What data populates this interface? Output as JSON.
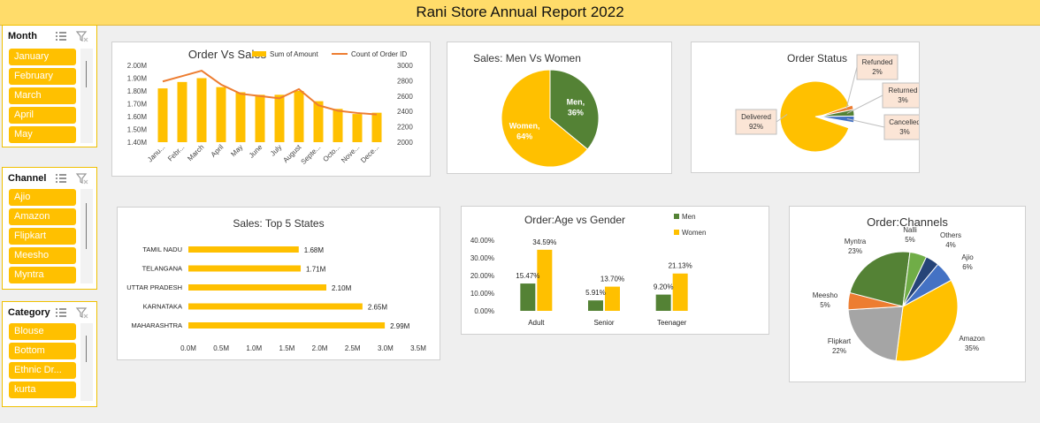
{
  "report": {
    "title": "Rani Store Annual Report 2022"
  },
  "slicers": {
    "month": {
      "header": "Month",
      "items": [
        "January",
        "February",
        "March",
        "April",
        "May"
      ]
    },
    "channel": {
      "header": "Channel",
      "items": [
        "Ajio",
        "Amazon",
        "Flipkart",
        "Meesho",
        "Myntra"
      ]
    },
    "category": {
      "header": "Category",
      "items": [
        "Blouse",
        "Bottom",
        "Ethnic Dr...",
        "kurta"
      ]
    }
  },
  "colors": {
    "yellow": "#ffc000",
    "green": "#548235",
    "orange": "#ed7d31",
    "blue": "#4472c4",
    "grey": "#a5a5a5",
    "navy": "#264478",
    "lightgreen": "#70ad47"
  },
  "chart_data": [
    {
      "id": "order_vs_sales",
      "type": "bar",
      "title": "Order Vs Sales",
      "categories": [
        "Janu...",
        "Febr...",
        "March",
        "April",
        "May",
        "June",
        "July",
        "August",
        "Septe...",
        "Octo...",
        "Nove...",
        "Dece..."
      ],
      "series": [
        {
          "name": "Sum of Amount",
          "kind": "bar",
          "axis": "left",
          "values": [
            1.82,
            1.87,
            1.9,
            1.83,
            1.79,
            1.77,
            1.77,
            1.8,
            1.72,
            1.66,
            1.62,
            1.63
          ]
        },
        {
          "name": "Count of Order ID",
          "kind": "line",
          "axis": "right",
          "values": [
            2790,
            2860,
            2930,
            2750,
            2630,
            2600,
            2570,
            2690,
            2480,
            2410,
            2380,
            2360
          ]
        }
      ],
      "yticks_left": [
        "2.00M",
        "1.90M",
        "1.80M",
        "1.70M",
        "1.60M",
        "1.50M",
        "1.40M"
      ],
      "yticks_right": [
        "3000",
        "2800",
        "2600",
        "2400",
        "2200",
        "2000"
      ],
      "ylim_left": [
        1.4,
        2.0
      ],
      "ylim_right": [
        2000,
        3000
      ],
      "legend": "top"
    },
    {
      "id": "men_vs_women",
      "type": "pie",
      "title": "Sales: Men Vs Women",
      "slices": [
        {
          "label": "Men",
          "pct_label": "36%",
          "value": 36
        },
        {
          "label": "Women",
          "pct_label": "64%",
          "value": 64
        }
      ]
    },
    {
      "id": "order_status",
      "type": "pie",
      "title": "Order Status",
      "slices": [
        {
          "label": "Delivered",
          "pct_label": "92%",
          "value": 92
        },
        {
          "label": "Refunded",
          "pct_label": "2%",
          "value": 2
        },
        {
          "label": "Returned",
          "pct_label": "3%",
          "value": 3
        },
        {
          "label": "Cancelled",
          "pct_label": "3%",
          "value": 3
        }
      ]
    },
    {
      "id": "top5_states",
      "type": "bar",
      "orientation": "horizontal",
      "title": "Sales: Top 5 States",
      "categories": [
        "TAMIL NADU",
        "TELANGANA",
        "UTTAR PRADESH",
        "KARNATAKA",
        "MAHARASHTRA"
      ],
      "values": [
        1.68,
        1.71,
        2.1,
        2.65,
        2.99
      ],
      "value_labels": [
        "1.68M",
        "1.71M",
        "2.10M",
        "2.65M",
        "2.99M"
      ],
      "xticks": [
        "0.0M",
        "0.5M",
        "1.0M",
        "1.5M",
        "2.0M",
        "2.5M",
        "3.0M",
        "3.5M"
      ],
      "xlim": [
        0,
        3.5
      ]
    },
    {
      "id": "age_vs_gender",
      "type": "bar",
      "title": "Order:Age vs Gender",
      "categories": [
        "Adult",
        "Senior",
        "Teenager"
      ],
      "series": [
        {
          "name": "Men",
          "values": [
            15.47,
            5.91,
            9.2
          ],
          "labels": [
            "15.47%",
            "5.91%",
            "9.20%"
          ]
        },
        {
          "name": "Women",
          "values": [
            34.59,
            13.7,
            21.13
          ],
          "labels": [
            "34.59%",
            "13.70%",
            "21.13%"
          ]
        }
      ],
      "yticks": [
        "40.00%",
        "30.00%",
        "20.00%",
        "10.00%",
        "0.00%"
      ],
      "ylim": [
        0,
        40
      ],
      "legend": "top-right"
    },
    {
      "id": "channels",
      "type": "pie",
      "title": "Order:Channels",
      "slices": [
        {
          "label": "Amazon",
          "pct_label": "35%",
          "value": 35
        },
        {
          "label": "Flipkart",
          "pct_label": "22%",
          "value": 22
        },
        {
          "label": "Meesho",
          "pct_label": "5%",
          "value": 5
        },
        {
          "label": "Myntra",
          "pct_label": "23%",
          "value": 23
        },
        {
          "label": "Nalli",
          "pct_label": "5%",
          "value": 5
        },
        {
          "label": "Others",
          "pct_label": "4%",
          "value": 4
        },
        {
          "label": "Ajio",
          "pct_label": "6%",
          "value": 6
        }
      ]
    }
  ]
}
